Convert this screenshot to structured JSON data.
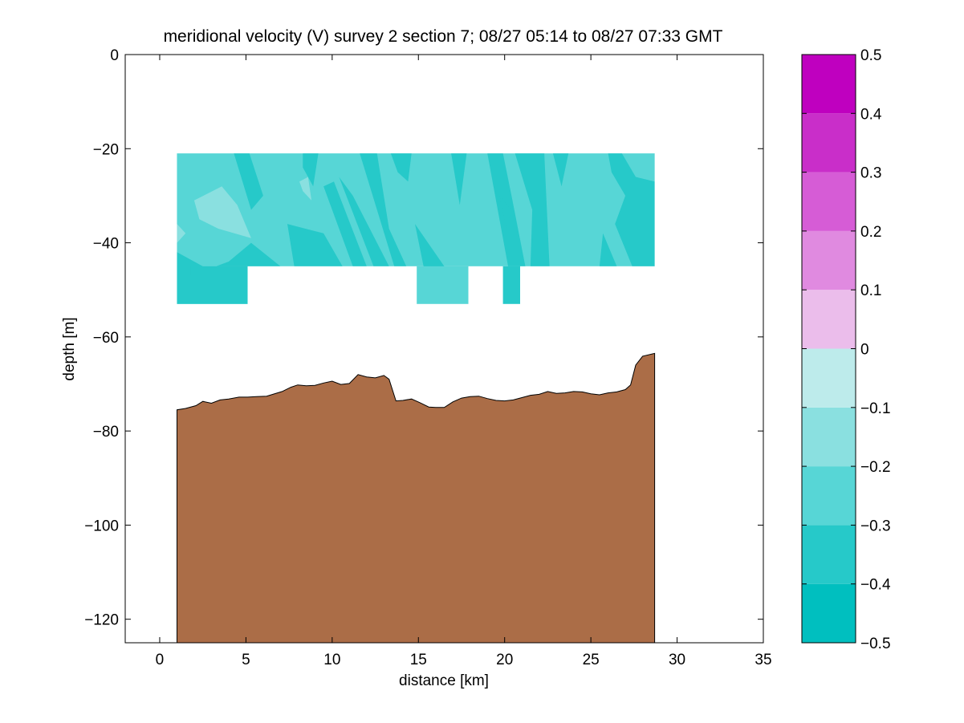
{
  "chart_data": {
    "type": "contour",
    "title": "meridional velocity (V) survey 2 section 7; 08/27 05:14 to 08/27 07:33 GMT",
    "xlabel": "distance [km]",
    "ylabel": "depth [m]",
    "xlim": [
      -2,
      35
    ],
    "ylim": [
      -125,
      0
    ],
    "xticks": [
      0,
      5,
      10,
      15,
      20,
      25,
      30,
      35
    ],
    "yticks": [
      -120,
      -100,
      -80,
      -60,
      -40,
      -20,
      0
    ],
    "colorbar": {
      "levels": [
        -0.5,
        -0.4,
        -0.3,
        -0.2,
        -0.1,
        0,
        0.1,
        0.2,
        0.3,
        0.4,
        0.5
      ],
      "colors": [
        "#00bfbf",
        "#26c9c9",
        "#57d6d6",
        "#8ae0e0",
        "#bdebeb",
        "#ebbdeb",
        "#e08ae0",
        "#d65cd6",
        "#c92ec9",
        "#bf00bf"
      ]
    },
    "velocity_field": {
      "x_range": [
        1,
        28.7
      ],
      "depth_top": -21,
      "depth_bottom_main": -45,
      "base_color": "#57d6d6",
      "deep_patches": [
        {
          "x": [
            1,
            5.1
          ],
          "depth": [
            -45,
            -53
          ],
          "color": "#26c9c9"
        },
        {
          "x": [
            14.9,
            17.9
          ],
          "depth": [
            -45,
            -53
          ],
          "color": "#57d6d6"
        },
        {
          "x": [
            19.9,
            20.9
          ],
          "depth": [
            -45,
            -53
          ],
          "color": "#26c9c9"
        }
      ],
      "strong_regions": [
        [
          [
            1,
            -42
          ],
          [
            2.5,
            -45
          ],
          [
            5,
            -45
          ],
          [
            5.1,
            -53
          ],
          [
            1,
            -53
          ]
        ],
        [
          [
            1.8,
            -47
          ],
          [
            4,
            -44
          ],
          [
            5.3,
            -40
          ],
          [
            7,
            -45
          ],
          [
            1.8,
            -45
          ]
        ],
        [
          [
            4.3,
            -21
          ],
          [
            5.2,
            -21
          ],
          [
            6,
            -30
          ],
          [
            5.3,
            -33
          ]
        ],
        [
          [
            7.4,
            -36
          ],
          [
            9.5,
            -38
          ],
          [
            10.6,
            -45
          ],
          [
            7.8,
            -45
          ]
        ],
        [
          [
            8.3,
            -21
          ],
          [
            9.2,
            -21
          ],
          [
            8.9,
            -28
          ],
          [
            8.3,
            -24
          ]
        ],
        [
          [
            9.5,
            -28
          ],
          [
            10.1,
            -27
          ],
          [
            12,
            -45
          ],
          [
            11.2,
            -45
          ]
        ],
        [
          [
            10.4,
            -26
          ],
          [
            11.2,
            -30
          ],
          [
            13.3,
            -45
          ],
          [
            12.4,
            -45
          ]
        ],
        [
          [
            11.6,
            -21
          ],
          [
            12.6,
            -21
          ],
          [
            13.3,
            -37
          ],
          [
            14.3,
            -45
          ],
          [
            13.6,
            -45
          ]
        ],
        [
          [
            13.4,
            -21
          ],
          [
            14.6,
            -21
          ],
          [
            14.4,
            -27
          ],
          [
            13.8,
            -25
          ]
        ],
        [
          [
            14.8,
            -36
          ],
          [
            16.5,
            -45
          ],
          [
            15.3,
            -45
          ]
        ],
        [
          [
            16.9,
            -21
          ],
          [
            17.8,
            -21
          ],
          [
            17.4,
            -32
          ]
        ],
        [
          [
            19,
            -21
          ],
          [
            19.9,
            -21
          ],
          [
            20.4,
            -30
          ],
          [
            21.2,
            -45
          ],
          [
            20.2,
            -45
          ]
        ],
        [
          [
            19.7,
            -30
          ],
          [
            20.4,
            -33
          ],
          [
            20.1,
            -37
          ]
        ],
        [
          [
            20.6,
            -21
          ],
          [
            22.3,
            -21
          ],
          [
            22.6,
            -45
          ],
          [
            21.5,
            -45
          ],
          [
            21.6,
            -33
          ]
        ],
        [
          [
            22.8,
            -21
          ],
          [
            23.7,
            -21
          ],
          [
            23.3,
            -28
          ]
        ],
        [
          [
            26,
            -21
          ],
          [
            26.8,
            -21
          ],
          [
            27.6,
            -26
          ],
          [
            28.7,
            -27
          ],
          [
            28.7,
            -45
          ],
          [
            27.4,
            -45
          ],
          [
            26.4,
            -36
          ],
          [
            27,
            -30
          ],
          [
            26.2,
            -25
          ]
        ],
        [
          [
            25.7,
            -38
          ],
          [
            26.5,
            -45
          ],
          [
            25.5,
            -45
          ]
        ]
      ],
      "weak_regions": [
        [
          [
            2,
            -31
          ],
          [
            3.6,
            -28
          ],
          [
            4.5,
            -32
          ],
          [
            5.3,
            -39
          ],
          [
            3.4,
            -37
          ],
          [
            2.3,
            -35
          ]
        ],
        [
          [
            1,
            -36
          ],
          [
            1.5,
            -38
          ],
          [
            1,
            -40
          ]
        ],
        [
          [
            8.1,
            -27
          ],
          [
            8.6,
            -26
          ],
          [
            8.8,
            -31
          ],
          [
            8.3,
            -29
          ]
        ]
      ]
    },
    "bathymetry": {
      "color": "#ab6d47",
      "x": [
        1,
        1.5,
        2.1,
        2.5,
        3,
        3.5,
        4,
        4.6,
        5.1,
        5.6,
        6.2,
        7.1,
        7.6,
        8,
        8.5,
        9,
        9.5,
        10,
        10.5,
        11,
        11.5,
        12,
        12.5,
        13,
        13.3,
        13.7,
        14.1,
        14.6,
        15.1,
        15.6,
        16,
        16.5,
        17,
        17.5,
        18,
        18.5,
        19,
        19.5,
        20,
        20.5,
        21,
        21.5,
        22,
        22.5,
        23,
        23.5,
        24,
        24.5,
        25,
        25.5,
        26,
        26.5,
        27,
        27.3,
        27.6,
        28,
        28.7
      ],
      "depth": [
        -75.5,
        -75.2,
        -74.6,
        -73.7,
        -74.1,
        -73.4,
        -73.2,
        -72.8,
        -72.8,
        -72.7,
        -72.6,
        -71.6,
        -70.7,
        -70.2,
        -70.4,
        -70.3,
        -69.8,
        -69.4,
        -70.1,
        -69.9,
        -68,
        -68.5,
        -68.7,
        -68.2,
        -69,
        -73.6,
        -73.5,
        -73.2,
        -74,
        -74.9,
        -75,
        -75,
        -73.8,
        -73,
        -72.7,
        -72.6,
        -73.1,
        -73.5,
        -73.6,
        -73.4,
        -72.9,
        -72.4,
        -72.2,
        -71.6,
        -72,
        -71.9,
        -71.6,
        -71.7,
        -72.1,
        -72.3,
        -71.9,
        -71.7,
        -71.2,
        -70.2,
        -66,
        -64.1,
        -63.5
      ]
    }
  }
}
